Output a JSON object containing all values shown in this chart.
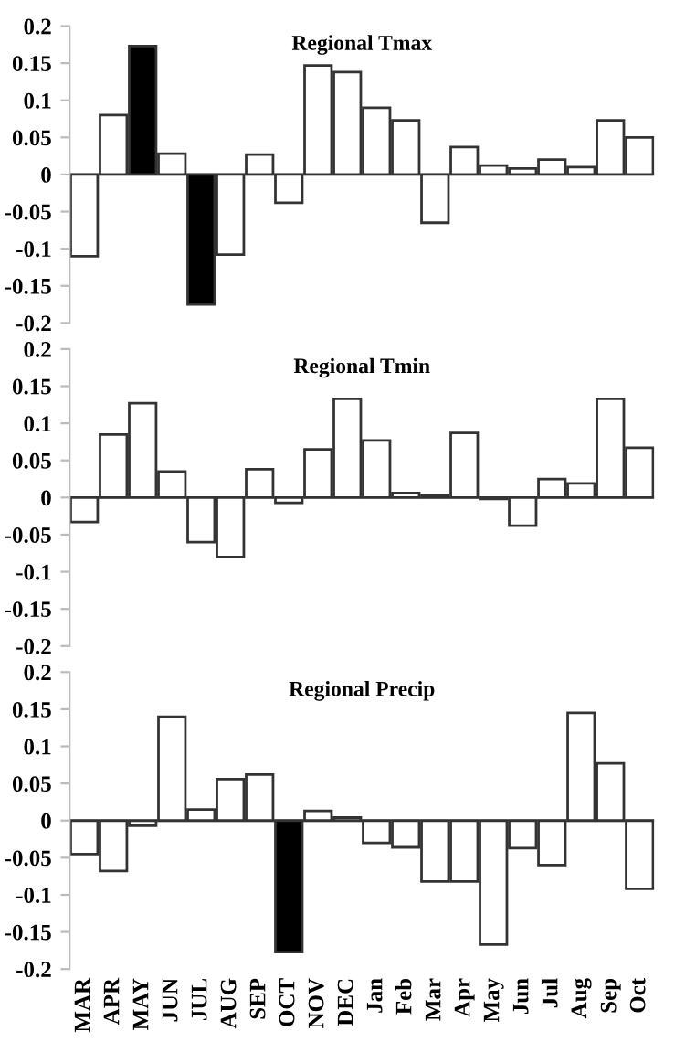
{
  "chart_data": [
    {
      "type": "bar",
      "title": "Regional Tmax",
      "categories": [
        null,
        null,
        null,
        null,
        null,
        null,
        null,
        null,
        null,
        null,
        null,
        null,
        null,
        null,
        null,
        null,
        null,
        null,
        null,
        null
      ],
      "values": [
        -0.11,
        0.08,
        0.173,
        0.028,
        -0.175,
        -0.108,
        0.027,
        -0.038,
        0.147,
        0.138,
        0.09,
        0.073,
        -0.065,
        0.037,
        0.012,
        0.008,
        0.02,
        0.01,
        0.073,
        0.05
      ],
      "colors": [
        "#ffffff",
        "#ffffff",
        "#000000",
        "#ffffff",
        "#000000",
        "#ffffff",
        "#ffffff",
        "#ffffff",
        "#ffffff",
        "#ffffff",
        "#ffffff",
        "#ffffff",
        "#ffffff",
        "#ffffff",
        "#ffffff",
        "#ffffff",
        "#ffffff",
        "#ffffff",
        "#ffffff",
        "#ffffff"
      ],
      "ylim": [
        -0.2,
        0.2
      ],
      "yticks": [
        -0.2,
        -0.15,
        -0.1,
        -0.05,
        0,
        0.05,
        0.1,
        0.15,
        0.2
      ],
      "tick_labels": "y"
    },
    {
      "type": "bar",
      "title": "Regional Tmin",
      "categories": [
        null,
        null,
        null,
        null,
        null,
        null,
        null,
        null,
        null,
        null,
        null,
        null,
        null,
        null,
        null,
        null,
        null,
        null,
        null,
        null
      ],
      "values": [
        -0.033,
        0.085,
        0.127,
        0.035,
        -0.06,
        -0.08,
        0.038,
        -0.007,
        0.065,
        0.133,
        0.077,
        0.006,
        0.003,
        0.087,
        -0.002,
        -0.038,
        0.025,
        0.019,
        0.133,
        0.067
      ],
      "colors": [
        "#ffffff",
        "#ffffff",
        "#ffffff",
        "#ffffff",
        "#ffffff",
        "#ffffff",
        "#ffffff",
        "#ffffff",
        "#ffffff",
        "#ffffff",
        "#ffffff",
        "#ffffff",
        "#ffffff",
        "#ffffff",
        "#ffffff",
        "#ffffff",
        "#ffffff",
        "#ffffff",
        "#ffffff",
        "#ffffff"
      ],
      "ylim": [
        -0.2,
        0.2
      ],
      "yticks": [
        -0.2,
        -0.15,
        -0.1,
        -0.05,
        0,
        0.05,
        0.1,
        0.15,
        0.2
      ],
      "tick_labels": "y"
    },
    {
      "type": "bar",
      "title": "Regional Precip",
      "categories": [
        "MAR",
        "APR",
        "MAY",
        "JUN",
        "JUL",
        "AUG",
        "SEP",
        "OCT",
        "NOV",
        "DEC",
        "Jan",
        "Feb",
        "Mar",
        "Apr",
        "May",
        "Jun",
        "Jul",
        "Aug",
        "Sep",
        "Oct"
      ],
      "values": [
        -0.045,
        -0.068,
        -0.007,
        0.14,
        0.015,
        0.056,
        0.062,
        -0.177,
        0.013,
        0.004,
        -0.03,
        -0.036,
        -0.082,
        -0.082,
        -0.167,
        -0.037,
        -0.06,
        0.145,
        0.077,
        -0.092
      ],
      "colors": [
        "#ffffff",
        "#ffffff",
        "#ffffff",
        "#ffffff",
        "#ffffff",
        "#ffffff",
        "#ffffff",
        "#000000",
        "#ffffff",
        "#ffffff",
        "#ffffff",
        "#ffffff",
        "#ffffff",
        "#ffffff",
        "#ffffff",
        "#ffffff",
        "#ffffff",
        "#ffffff",
        "#ffffff",
        "#ffffff"
      ],
      "ylim": [
        -0.2,
        0.2
      ],
      "yticks": [
        -0.2,
        -0.15,
        -0.1,
        -0.05,
        0,
        0.05,
        0.1,
        0.15,
        0.2
      ]
    }
  ]
}
